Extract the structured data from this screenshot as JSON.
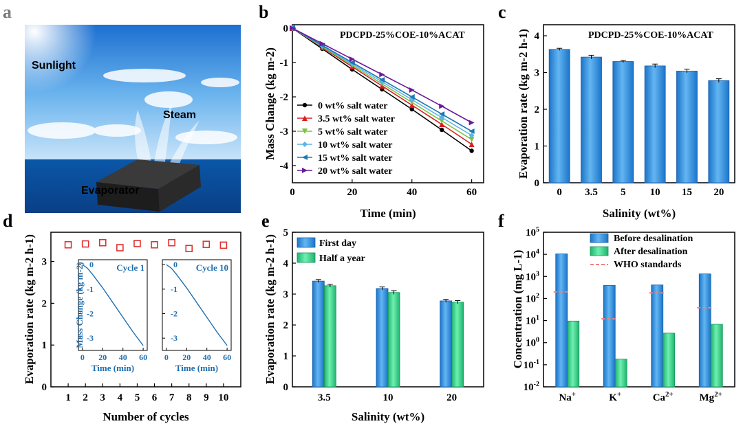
{
  "panel_letters": [
    "a",
    "b",
    "c",
    "d",
    "e",
    "f"
  ],
  "scene": {
    "sunlight_label": "Sunlight",
    "steam_label": "Steam",
    "evaporator_label": "Evaporator"
  },
  "chart_data": [
    {
      "panel": "b",
      "type": "line",
      "title": "PDCPD-25%COE-10%ACAT",
      "xlabel": "Time (min)",
      "ylabel": "Mass Change (kg m-2)",
      "xlim": [
        0,
        64
      ],
      "ylim": [
        -4.5,
        0.1
      ],
      "xticks": [
        0,
        20,
        40,
        60
      ],
      "yticks": [
        0,
        -1,
        -2,
        -3,
        -4
      ],
      "x": [
        0,
        10,
        20,
        30,
        40,
        50,
        60
      ],
      "series": [
        {
          "name": "0 wt% salt water",
          "color": "#000000",
          "marker": "circle",
          "values": [
            0,
            -0.6,
            -1.2,
            -1.78,
            -2.36,
            -2.96,
            -3.57
          ]
        },
        {
          "name": "3.5 wt% salt water",
          "color": "#d62020",
          "marker": "triangle-up",
          "values": [
            0,
            -0.56,
            -1.12,
            -1.68,
            -2.24,
            -2.8,
            -3.38
          ]
        },
        {
          "name": "5 wt% salt water",
          "color": "#7cc242",
          "marker": "triangle-down",
          "values": [
            0,
            -0.54,
            -1.08,
            -1.62,
            -2.16,
            -2.7,
            -3.24
          ]
        },
        {
          "name": "10 wt% salt water",
          "color": "#5bb4ea",
          "marker": "diamond",
          "values": [
            0,
            -0.52,
            -1.04,
            -1.56,
            -2.08,
            -2.6,
            -3.12
          ]
        },
        {
          "name": "15 wt% salt water",
          "color": "#1f78b4",
          "marker": "triangle-left",
          "values": [
            0,
            -0.5,
            -1.0,
            -1.5,
            -2.0,
            -2.5,
            -3.0
          ]
        },
        {
          "name": "20 wt% salt water",
          "color": "#6a1b9a",
          "marker": "triangle-right",
          "values": [
            0,
            -0.45,
            -0.9,
            -1.35,
            -1.8,
            -2.27,
            -2.75
          ]
        }
      ]
    },
    {
      "panel": "c",
      "type": "bar",
      "title": "PDCPD-25%COE-10%ACAT",
      "xlabel": "Salinity (wt%)",
      "ylabel": "Evaporation rate (kg m-2 h-1)",
      "ylim": [
        0,
        4.3
      ],
      "yticks": [
        0,
        1,
        2,
        3,
        4
      ],
      "categories": [
        "0",
        "3.5",
        "5",
        "10",
        "15",
        "20"
      ],
      "values": [
        3.63,
        3.42,
        3.3,
        3.18,
        3.04,
        2.78
      ],
      "errors": [
        0.03,
        0.05,
        0.03,
        0.05,
        0.05,
        0.05
      ],
      "color": "#3b9ae1"
    },
    {
      "panel": "d",
      "type": "scatter",
      "xlabel": "Number of cycles",
      "ylabel": "Evaporation rate (kg m-2 h-1)",
      "xlim": [
        0,
        11
      ],
      "ylim": [
        0,
        3.7
      ],
      "xticks": [
        1,
        2,
        3,
        4,
        5,
        6,
        7,
        8,
        9,
        10
      ],
      "yticks": [
        0,
        1,
        2,
        3
      ],
      "x": [
        1,
        2,
        3,
        4,
        5,
        6,
        7,
        8,
        9,
        10
      ],
      "values": [
        3.4,
        3.42,
        3.45,
        3.33,
        3.43,
        3.4,
        3.45,
        3.31,
        3.41,
        3.39
      ],
      "marker_color": "#e03030",
      "insets": [
        {
          "title": "Cycle 1",
          "xlabel": "Time (min)",
          "ylabel": "Mass Change (kg m-2)",
          "xticks": [
            0,
            20,
            40,
            60
          ],
          "yticks": [
            0,
            -1,
            -2,
            -3
          ],
          "xlim": [
            -4,
            64
          ],
          "ylim": [
            -3.5,
            0.2
          ],
          "x": [
            0,
            5,
            10,
            20,
            30,
            40,
            50,
            60
          ],
          "values": [
            0,
            -0.15,
            -0.4,
            -0.95,
            -1.55,
            -2.15,
            -2.75,
            -3.3
          ]
        },
        {
          "title": "Cycle 10",
          "xlabel": "Time (min)",
          "ylabel": "",
          "xticks": [
            0,
            20,
            40,
            60
          ],
          "yticks": [
            0,
            -1,
            -2,
            -3
          ],
          "xlim": [
            -4,
            64
          ],
          "ylim": [
            -3.5,
            0.2
          ],
          "x": [
            0,
            5,
            10,
            20,
            30,
            40,
            50,
            60
          ],
          "values": [
            0,
            -0.15,
            -0.4,
            -0.95,
            -1.55,
            -2.15,
            -2.75,
            -3.3
          ]
        }
      ]
    },
    {
      "panel": "e",
      "type": "bar",
      "xlabel": "Salinity (wt%)",
      "ylabel": "Evaporation rate (kg m-2 h-1)",
      "ylim": [
        0,
        5
      ],
      "yticks": [
        0,
        1,
        2,
        3,
        4,
        5
      ],
      "categories": [
        "3.5",
        "10",
        "20"
      ],
      "series": [
        {
          "name": "First day",
          "color": "#3b9ae1",
          "values": [
            3.42,
            3.18,
            2.78
          ],
          "errors": [
            0.05,
            0.05,
            0.05
          ]
        },
        {
          "name": "Half a year",
          "color": "#3ed68c",
          "values": [
            3.27,
            3.05,
            2.74
          ],
          "errors": [
            0.05,
            0.06,
            0.05
          ]
        }
      ]
    },
    {
      "panel": "f",
      "type": "bar",
      "scale": "log",
      "xlabel": "",
      "ylabel": "Concentration (mg L-1)",
      "ylim": [
        0.01,
        100000
      ],
      "yticks": [
        "10-2",
        "10-1",
        "100",
        "101",
        "102",
        "103",
        "104",
        "105"
      ],
      "categories": [
        "Na+",
        "K+",
        "Ca2+",
        "Mg2+"
      ],
      "series": [
        {
          "name": "Before desalination",
          "color": "#3b9ae1",
          "values": [
            10500,
            390,
            410,
            1300
          ]
        },
        {
          "name": "After desalination",
          "color": "#3ed68c",
          "values": [
            9.5,
            0.18,
            2.7,
            6.8
          ]
        },
        {
          "name": "WHO standards",
          "color": "#f08080",
          "style": "dashed",
          "values": [
            200,
            12,
            180,
            38
          ]
        }
      ]
    }
  ]
}
